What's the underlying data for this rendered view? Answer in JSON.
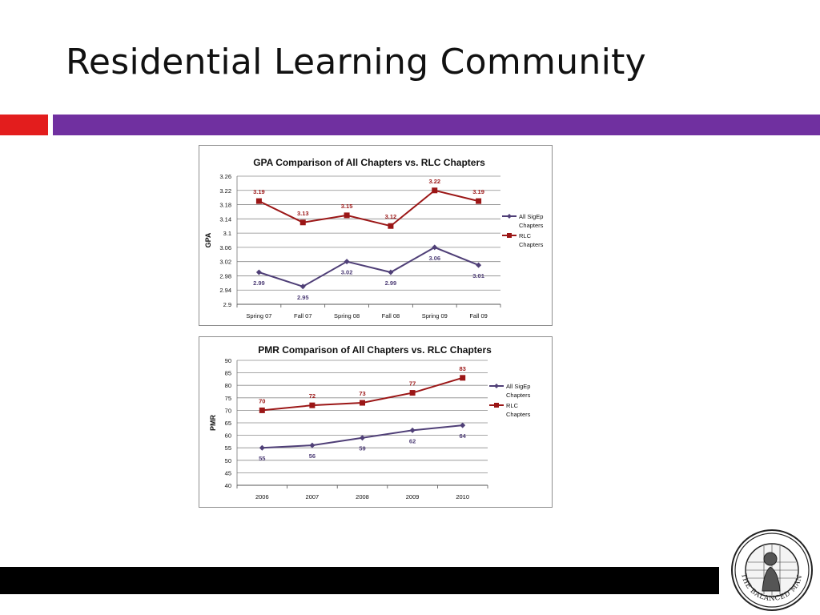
{
  "slide": {
    "title": "Residential Learning Community"
  },
  "colors": {
    "accent_red": "#e31d1d",
    "accent_purple": "#7030a0",
    "footer_black": "#000000",
    "series_sigep": "#4f3f77",
    "series_rlc": "#9b1616"
  },
  "logo": {
    "name": "the-balanced-man-seal",
    "text": "THE BALANCED MAN"
  },
  "chart_data": [
    {
      "type": "line",
      "title": "GPA Comparison of All Chapters vs. RLC Chapters",
      "xlabel": "",
      "ylabel": "GPA",
      "categories": [
        "Spring 07",
        "Fall 07",
        "Spring 08",
        "Fall 08",
        "Spring 09",
        "Fall 09"
      ],
      "ylim": [
        2.9,
        3.26
      ],
      "yticks": [
        "3.26",
        "3.22",
        "3.18",
        "3.14",
        "3.1",
        "3.06",
        "3.02",
        "2.98",
        "2.94",
        "2.9"
      ],
      "grid": true,
      "legend": "right",
      "series": [
        {
          "name": "All SigEp Chapters",
          "legend_lines": [
            "All SigEp",
            "Chapters"
          ],
          "values": [
            2.99,
            2.95,
            3.02,
            2.99,
            3.06,
            3.01
          ],
          "labels": [
            "2.99",
            "2.95",
            "3.02",
            "2.99",
            "3.06",
            "3.01"
          ],
          "label_pos": "below",
          "marker": "diamond"
        },
        {
          "name": "RLC Chapters",
          "legend_lines": [
            "RLC",
            "Chapters"
          ],
          "values": [
            3.19,
            3.13,
            3.15,
            3.12,
            3.22,
            3.19
          ],
          "labels": [
            "3.19",
            "3.13",
            "3.15",
            "3.12",
            "3.22",
            "3.19"
          ],
          "label_pos": "above",
          "marker": "square"
        }
      ]
    },
    {
      "type": "line",
      "title": "PMR Comparison of All Chapters vs. RLC Chapters",
      "xlabel": "",
      "ylabel": "PMR",
      "categories": [
        "2006",
        "2007",
        "2008",
        "2009",
        "2010"
      ],
      "ylim": [
        40,
        90
      ],
      "yticks": [
        "90",
        "85",
        "80",
        "75",
        "70",
        "65",
        "60",
        "55",
        "50",
        "45",
        "40"
      ],
      "grid": true,
      "legend": "right",
      "series": [
        {
          "name": "All SigEp Chapters",
          "legend_lines": [
            "All SigEp",
            "Chapters"
          ],
          "values": [
            55,
            56,
            59,
            62,
            64
          ],
          "labels": [
            "55",
            "56",
            "59",
            "62",
            "64"
          ],
          "label_pos": "below",
          "marker": "diamond"
        },
        {
          "name": "RLC Chapters",
          "legend_lines": [
            "RLC",
            "Chapters"
          ],
          "values": [
            70,
            72,
            73,
            77,
            83
          ],
          "labels": [
            "70",
            "72",
            "73",
            "77",
            "83"
          ],
          "label_pos": "above",
          "marker": "square"
        }
      ]
    }
  ]
}
